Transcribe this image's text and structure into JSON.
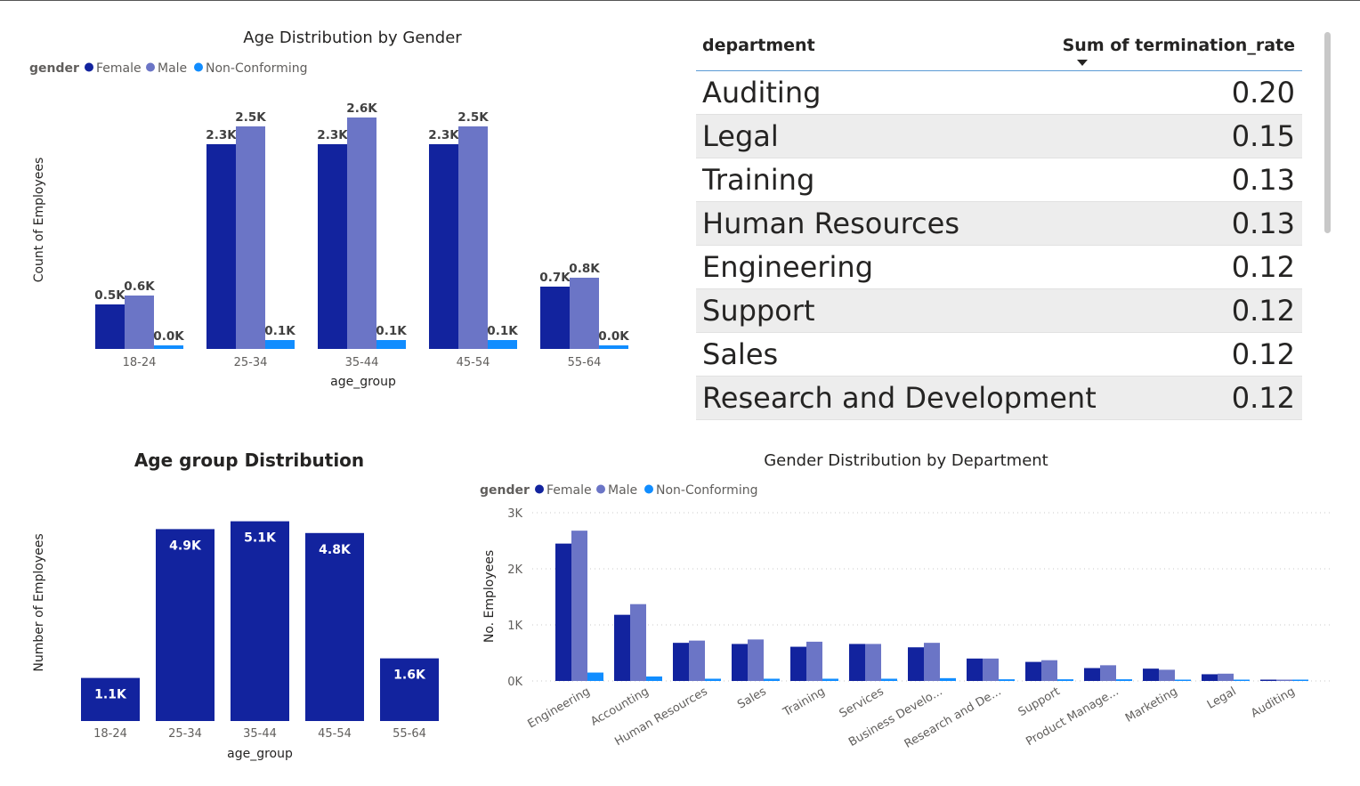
{
  "colors": {
    "female": "#12239e",
    "male": "#6b75c6",
    "non_conforming": "#118dff",
    "single": "#12239e"
  },
  "chart_data": [
    {
      "id": "age_by_gender",
      "type": "bar",
      "title": "Age Distribution by Gender",
      "legend_title": "gender",
      "legend_position": "top-left",
      "xlabel": "age_group",
      "ylabel": "Count of Employees",
      "categories": [
        "18-24",
        "25-34",
        "35-44",
        "45-54",
        "55-64"
      ],
      "series": [
        {
          "name": "Female",
          "values": [
            0.5,
            2.3,
            2.3,
            2.3,
            0.7
          ],
          "labels": [
            "0.5K",
            "2.3K",
            "2.3K",
            "2.3K",
            "0.7K"
          ]
        },
        {
          "name": "Male",
          "values": [
            0.6,
            2.5,
            2.6,
            2.5,
            0.8
          ],
          "labels": [
            "0.6K",
            "2.5K",
            "2.6K",
            "2.5K",
            "0.8K"
          ]
        },
        {
          "name": "Non-Conforming",
          "values": [
            0.04,
            0.1,
            0.1,
            0.1,
            0.04
          ],
          "labels": [
            "0.0K",
            "0.1K",
            "0.1K",
            "0.1K",
            "0.0K"
          ]
        }
      ],
      "units": "thousands",
      "grid": false
    },
    {
      "id": "termination_table",
      "type": "table",
      "columns": [
        "department",
        "Sum of termination_rate"
      ],
      "rows": [
        [
          "Auditing",
          "0.20"
        ],
        [
          "Legal",
          "0.15"
        ],
        [
          "Training",
          "0.13"
        ],
        [
          "Human Resources",
          "0.13"
        ],
        [
          "Engineering",
          "0.12"
        ],
        [
          "Support",
          "0.12"
        ],
        [
          "Sales",
          "0.12"
        ],
        [
          "Research and Development",
          "0.12"
        ]
      ],
      "sorted_by": "Sum of termination_rate",
      "sort_direction": "descending"
    },
    {
      "id": "age_group_distribution",
      "type": "bar",
      "title": "Age group Distribution",
      "xlabel": "age_group",
      "ylabel": "Number of Employees",
      "categories": [
        "18-24",
        "25-34",
        "35-44",
        "45-54",
        "55-64"
      ],
      "values": [
        1.1,
        4.9,
        5.1,
        4.8,
        1.6
      ],
      "labels": [
        "1.1K",
        "4.9K",
        "5.1K",
        "4.8K",
        "1.6K"
      ],
      "units": "thousands",
      "grid": false
    },
    {
      "id": "gender_by_department",
      "type": "bar",
      "title": "Gender Distribution by Department",
      "legend_title": "gender",
      "legend_position": "top-left",
      "xlabel": "",
      "ylabel": "No. Employees",
      "ylim": [
        0,
        3000
      ],
      "yticks": [
        "0K",
        "1K",
        "2K",
        "3K"
      ],
      "grid": true,
      "categories": [
        "Engineering",
        "Accounting",
        "Human Resources",
        "Sales",
        "Training",
        "Services",
        "Business Develo...",
        "Research and De...",
        "Support",
        "Product Manage...",
        "Marketing",
        "Legal",
        "Auditing"
      ],
      "series": [
        {
          "name": "Female",
          "values": [
            2450,
            1180,
            680,
            660,
            610,
            660,
            600,
            400,
            340,
            230,
            220,
            120,
            20
          ]
        },
        {
          "name": "Male",
          "values": [
            2680,
            1370,
            720,
            740,
            700,
            660,
            680,
            400,
            370,
            280,
            200,
            130,
            20
          ]
        },
        {
          "name": "Non-Conforming",
          "values": [
            150,
            80,
            40,
            40,
            40,
            40,
            50,
            30,
            30,
            30,
            20,
            10,
            0
          ]
        }
      ]
    }
  ]
}
